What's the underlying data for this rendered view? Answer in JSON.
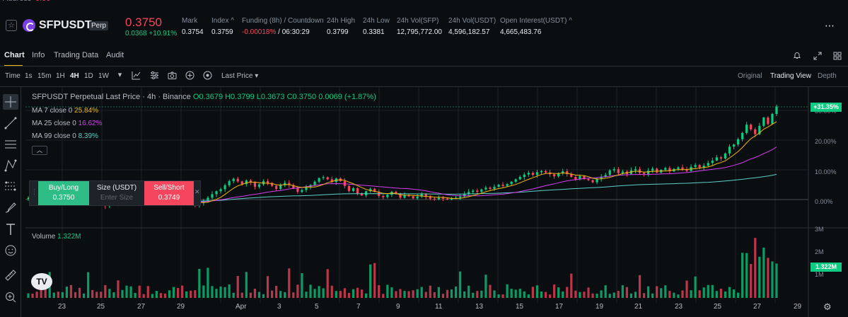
{
  "header": {
    "symbol": "SFPUSDT",
    "badge": "Perp",
    "last_price": "0.3750",
    "change": "0.0368 +10.91%",
    "stats": [
      {
        "label": "Mark",
        "value": "0.3754"
      },
      {
        "label": "Index ^",
        "value": "0.3759"
      },
      {
        "label": "Funding (8h) / Countdown",
        "value_neg": "-0.00018%",
        "value": " / 06:30:29"
      },
      {
        "label": "24h High",
        "value": "0.3799"
      },
      {
        "label": "24h Low",
        "value": "0.3381"
      },
      {
        "label": "24h Vol(SFP)",
        "value": "12,795,772.00"
      },
      {
        "label": "24h Vol(USDT)",
        "value": "4,596,182.57"
      },
      {
        "label": "Open Interest(USDT) ^",
        "value": "4,665,483.76"
      }
    ],
    "more_icon": "more-dots-icon"
  },
  "tabs": [
    "Chart",
    "Info",
    "Trading Data",
    "Audit"
  ],
  "toolbar": {
    "time_label": "Time",
    "intervals": [
      "1s",
      "15m",
      "1H",
      "4H",
      "1D",
      "1W"
    ],
    "active_interval": "4H",
    "price_source": "Last Price",
    "views": [
      "Original",
      "Trading View",
      "Depth"
    ],
    "active_view": "Trading View"
  },
  "legend": {
    "title": "SFPUSDT Perpetual Last Price · 4h · Binance",
    "ohlc": "O0.3679 H0.3799 L0.3673 C0.3750 0.0069 (+1.87%)",
    "ma7_label": "MA 7 close 0",
    "ma7_value": "25.84%",
    "ma25_label": "MA 25 close 0",
    "ma25_value": "16.62%",
    "ma99_label": "MA 99 close 0",
    "ma99_value": "8.39%"
  },
  "order_box": {
    "buy_label": "Buy/Long",
    "buy_price": "0.3750",
    "size_label": "Size (USDT)",
    "size_placeholder": "Enter Size",
    "sell_label": "Sell/Short",
    "sell_price": "0.3749"
  },
  "price_axis": {
    "labels": [
      "30.00%",
      "20.00%",
      "10.00%",
      "0.00%"
    ],
    "current_tag": "+31.35%"
  },
  "volume": {
    "label": "Volume",
    "value": "1.322M",
    "axis_labels": [
      "3M",
      "2M",
      "1M"
    ],
    "current_tag": "1.322M"
  },
  "x_axis": [
    "23",
    "25",
    "27",
    "29",
    "Apr",
    "3",
    "5",
    "7",
    "9",
    "11",
    "13",
    "15",
    "17",
    "19",
    "21",
    "23",
    "25",
    "27",
    "29"
  ],
  "colors": {
    "up": "#0ecb81",
    "down": "#f6465d",
    "ma7": "#f0b90b",
    "ma25": "#d63cf2",
    "ma99": "#5ad1c8",
    "accent": "#f0b90b"
  },
  "chart_data": {
    "type": "candlestick",
    "interval": "4h",
    "y_unit": "% change",
    "ylim": [
      -3,
      33
    ],
    "closes": [
      0.5,
      0.2,
      -0.5,
      -0.8,
      -1.2,
      -0.5,
      0.2,
      -0.3,
      0.6,
      1.0,
      0.4,
      -0.4,
      -1.1,
      -0.6,
      0.3,
      0.0,
      -0.6,
      -1.4,
      -2.2,
      -1.6,
      -0.9,
      -1.4,
      -0.7,
      -0.2,
      0.6,
      1.2,
      0.4,
      -0.5,
      -0.9,
      -0.3,
      -0.1,
      -0.9,
      -1.2,
      -0.4,
      0.2,
      -0.7,
      -1.4,
      -0.6,
      -1.3,
      -2.0,
      -1.1,
      -0.3,
      0.6,
      1.8,
      2.8,
      3.5,
      4.8,
      6.2,
      7.0,
      6.1,
      5.2,
      6.4,
      5.7,
      4.3,
      5.1,
      6.2,
      5.4,
      4.6,
      3.6,
      4.8,
      5.6,
      4.9,
      3.8,
      2.6,
      3.2,
      4.1,
      4.9,
      6.0,
      7.2,
      7.5,
      6.8,
      5.9,
      7.1,
      6.2,
      4.6,
      2.9,
      3.8,
      2.1,
      1.4,
      2.8,
      3.6,
      2.6,
      1.2,
      0.8,
      1.6,
      2.6,
      1.9,
      0.6,
      1.5,
      1.1,
      0.4,
      1.0,
      1.8,
      0.9,
      0.3,
      0.1,
      0.6,
      0.3,
      0.0,
      0.4,
      0.6,
      1.0,
      1.8,
      2.6,
      3.0,
      2.6,
      3.4,
      4.0,
      3.6,
      4.3,
      5.0,
      4.6,
      5.2,
      6.0,
      6.8,
      7.6,
      8.4,
      9.0,
      8.3,
      9.2,
      9.6,
      9.1,
      8.5,
      7.8,
      8.8,
      9.5,
      8.6,
      7.6,
      6.8,
      7.9,
      6.9,
      6.5,
      5.8,
      7.0,
      7.7,
      8.3,
      9.8,
      10.2,
      8.9,
      9.4,
      8.6,
      9.8,
      10.2,
      9.0,
      8.6,
      9.7,
      10.4,
      9.1,
      10.0,
      10.6,
      9.5,
      10.3,
      10.8,
      10.1,
      9.6,
      11.0,
      11.6,
      10.8,
      11.4,
      12.3,
      13.1,
      14.2,
      13.8,
      15.5,
      17.8,
      18.5,
      20.3,
      22.4,
      25.2,
      23.6,
      22.0,
      24.8,
      27.6,
      25.4,
      28.8,
      31.3
    ]
  }
}
